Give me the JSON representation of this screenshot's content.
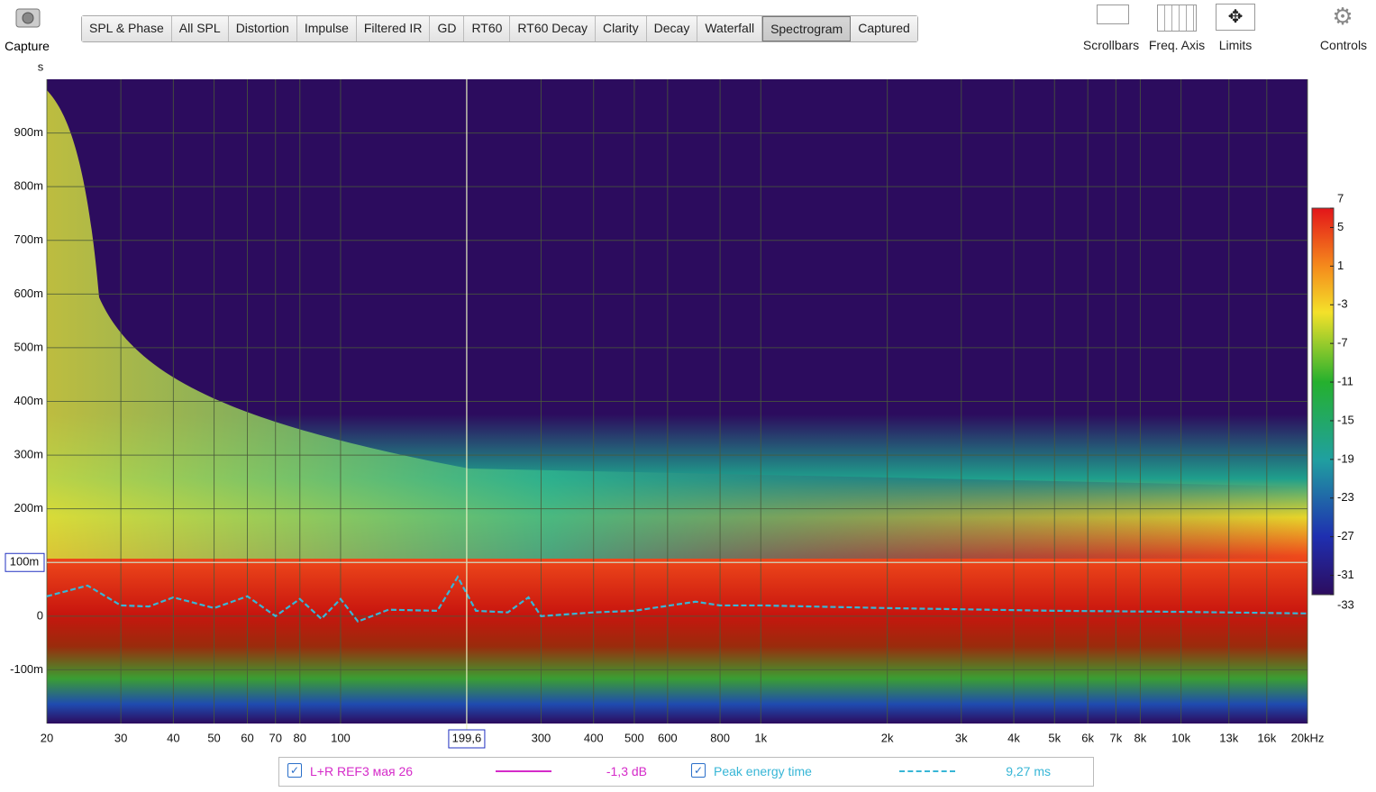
{
  "toolbar": {
    "capture": "Capture",
    "tabs": [
      "SPL & Phase",
      "All SPL",
      "Distortion",
      "Impulse",
      "Filtered IR",
      "GD",
      "RT60",
      "RT60 Decay",
      "Clarity",
      "Decay",
      "Waterfall",
      "Spectrogram",
      "Captured"
    ],
    "active_tab": 11,
    "tools": [
      "Scrollbars",
      "Freq. Axis",
      "Limits",
      "Controls"
    ]
  },
  "chart_data": {
    "type": "spectrogram",
    "y_unit": "s",
    "xlog": true,
    "grid": true,
    "xlim": [
      20,
      20000
    ],
    "ylim": [
      -0.2,
      1.0
    ],
    "xticks": [
      20,
      30,
      40,
      50,
      60,
      70,
      80,
      100,
      300,
      400,
      500,
      600,
      800,
      {
        "value": 1000,
        "label": "1k"
      },
      {
        "value": 2000,
        "label": "2k"
      },
      {
        "value": 3000,
        "label": "3k"
      },
      {
        "value": 4000,
        "label": "4k"
      },
      {
        "value": 5000,
        "label": "5k"
      },
      {
        "value": 6000,
        "label": "6k"
      },
      {
        "value": 7000,
        "label": "7k"
      },
      {
        "value": 8000,
        "label": "8k"
      },
      {
        "value": 10000,
        "label": "10k"
      },
      {
        "value": 13000,
        "label": "13k"
      },
      {
        "value": 16000,
        "label": "16k"
      },
      {
        "value": 20000,
        "label": "20kHz"
      }
    ],
    "yticks": [
      {
        "value": -0.1,
        "label": "-100m"
      },
      0,
      {
        "value": 0.2,
        "label": "200m"
      },
      {
        "value": 0.3,
        "label": "300m"
      },
      {
        "value": 0.4,
        "label": "400m"
      },
      {
        "value": 0.5,
        "label": "500m"
      },
      {
        "value": 0.6,
        "label": "600m"
      },
      {
        "value": 0.7,
        "label": "700m"
      },
      {
        "value": 0.8,
        "label": "800m"
      },
      {
        "value": 0.9,
        "label": "900m"
      }
    ],
    "cursor": {
      "x": {
        "value": 199.6,
        "label": "199,6"
      },
      "y": {
        "value": 0.1,
        "label": "100m"
      }
    },
    "colorbar": {
      "lim": [
        -33,
        7
      ],
      "ticks": [
        7,
        5,
        1,
        -3,
        -7,
        -11,
        -15,
        -19,
        -23,
        -27,
        -31,
        -33
      ]
    },
    "series": [
      {
        "name": "L+R REF3 мая 26",
        "color": "#d52bc9",
        "dash": false,
        "readout": "-1,3 dB"
      },
      {
        "name": "Peak energy time",
        "color": "#37b6d6",
        "dash": true,
        "readout": "9,27 ms",
        "x": [
          20,
          25,
          30,
          35,
          40,
          50,
          60,
          70,
          80,
          90,
          100,
          110,
          130,
          170,
          190,
          210,
          250,
          280,
          300,
          400,
          500,
          700,
          800,
          1000,
          2000,
          5000,
          10000,
          20000
        ],
        "values": [
          0.037,
          0.057,
          0.02,
          0.018,
          0.035,
          0.015,
          0.037,
          0.0,
          0.032,
          -0.005,
          0.032,
          -0.01,
          0.012,
          0.01,
          0.073,
          0.01,
          0.007,
          0.035,
          0.0,
          0.007,
          0.01,
          0.027,
          0.02,
          0.02,
          0.015,
          0.01,
          0.008,
          0.005
        ]
      }
    ]
  }
}
